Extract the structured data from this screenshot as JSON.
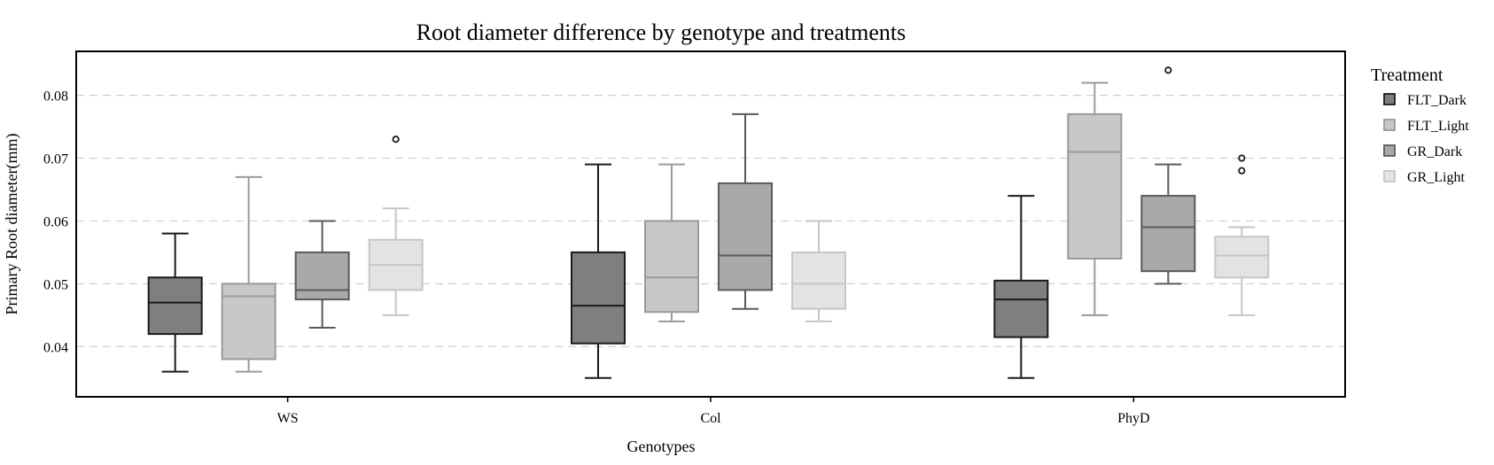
{
  "chart_data": {
    "type": "box",
    "title": "Root diameter difference by genotype and treatments",
    "xlabel": "Genotypes",
    "ylabel": "Primary Root diameter(mm)",
    "ylim": [
      0.032,
      0.087
    ],
    "yticks": [
      "0.04",
      "0.05",
      "0.06",
      "0.07",
      "0.08"
    ],
    "grid": "horizontal dashed",
    "categories": [
      "WS",
      "Col",
      "PhyD"
    ],
    "legend": {
      "title": "Treatment",
      "position": "right",
      "entries": [
        "FLT_Dark",
        "FLT_Light",
        "GR_Dark",
        "GR_Light"
      ]
    },
    "colors": {
      "FLT_Dark": {
        "fill": "#7f7f7f",
        "line": "#1a1a1a"
      },
      "FLT_Light": {
        "fill": "#c8c8c8",
        "line": "#9a9a9a"
      },
      "GR_Dark": {
        "fill": "#a9a9a9",
        "line": "#5a5a5a"
      },
      "GR_Light": {
        "fill": "#e3e3e3",
        "line": "#c6c6c6"
      }
    },
    "series": [
      {
        "name": "FLT_Dark",
        "boxes": [
          {
            "category": "WS",
            "min": 0.036,
            "q1": 0.042,
            "median": 0.047,
            "q3": 0.051,
            "max": 0.058,
            "outliers": []
          },
          {
            "category": "Col",
            "min": 0.035,
            "q1": 0.0405,
            "median": 0.0465,
            "q3": 0.055,
            "max": 0.069,
            "outliers": []
          },
          {
            "category": "PhyD",
            "min": 0.035,
            "q1": 0.0415,
            "median": 0.0475,
            "q3": 0.0505,
            "max": 0.064,
            "outliers": []
          }
        ]
      },
      {
        "name": "FLT_Light",
        "boxes": [
          {
            "category": "WS",
            "min": 0.036,
            "q1": 0.038,
            "median": 0.048,
            "q3": 0.05,
            "max": 0.067,
            "outliers": []
          },
          {
            "category": "Col",
            "min": 0.044,
            "q1": 0.0455,
            "median": 0.051,
            "q3": 0.06,
            "max": 0.069,
            "outliers": []
          },
          {
            "category": "PhyD",
            "min": 0.045,
            "q1": 0.054,
            "median": 0.071,
            "q3": 0.077,
            "max": 0.082,
            "outliers": []
          }
        ]
      },
      {
        "name": "GR_Dark",
        "boxes": [
          {
            "category": "WS",
            "min": 0.043,
            "q1": 0.0475,
            "median": 0.049,
            "q3": 0.055,
            "max": 0.06,
            "outliers": []
          },
          {
            "category": "Col",
            "min": 0.046,
            "q1": 0.049,
            "median": 0.0545,
            "q3": 0.066,
            "max": 0.077,
            "outliers": []
          },
          {
            "category": "PhyD",
            "min": 0.05,
            "q1": 0.052,
            "median": 0.059,
            "q3": 0.064,
            "max": 0.069,
            "outliers": [
              0.084
            ]
          }
        ]
      },
      {
        "name": "GR_Light",
        "boxes": [
          {
            "category": "WS",
            "min": 0.045,
            "q1": 0.049,
            "median": 0.053,
            "q3": 0.057,
            "max": 0.062,
            "outliers": [
              0.073
            ]
          },
          {
            "category": "Col",
            "min": 0.044,
            "q1": 0.046,
            "median": 0.05,
            "q3": 0.055,
            "max": 0.06,
            "outliers": []
          },
          {
            "category": "PhyD",
            "min": 0.045,
            "q1": 0.051,
            "median": 0.0545,
            "q3": 0.0575,
            "max": 0.059,
            "outliers": [
              0.068,
              0.07
            ]
          }
        ]
      }
    ]
  }
}
